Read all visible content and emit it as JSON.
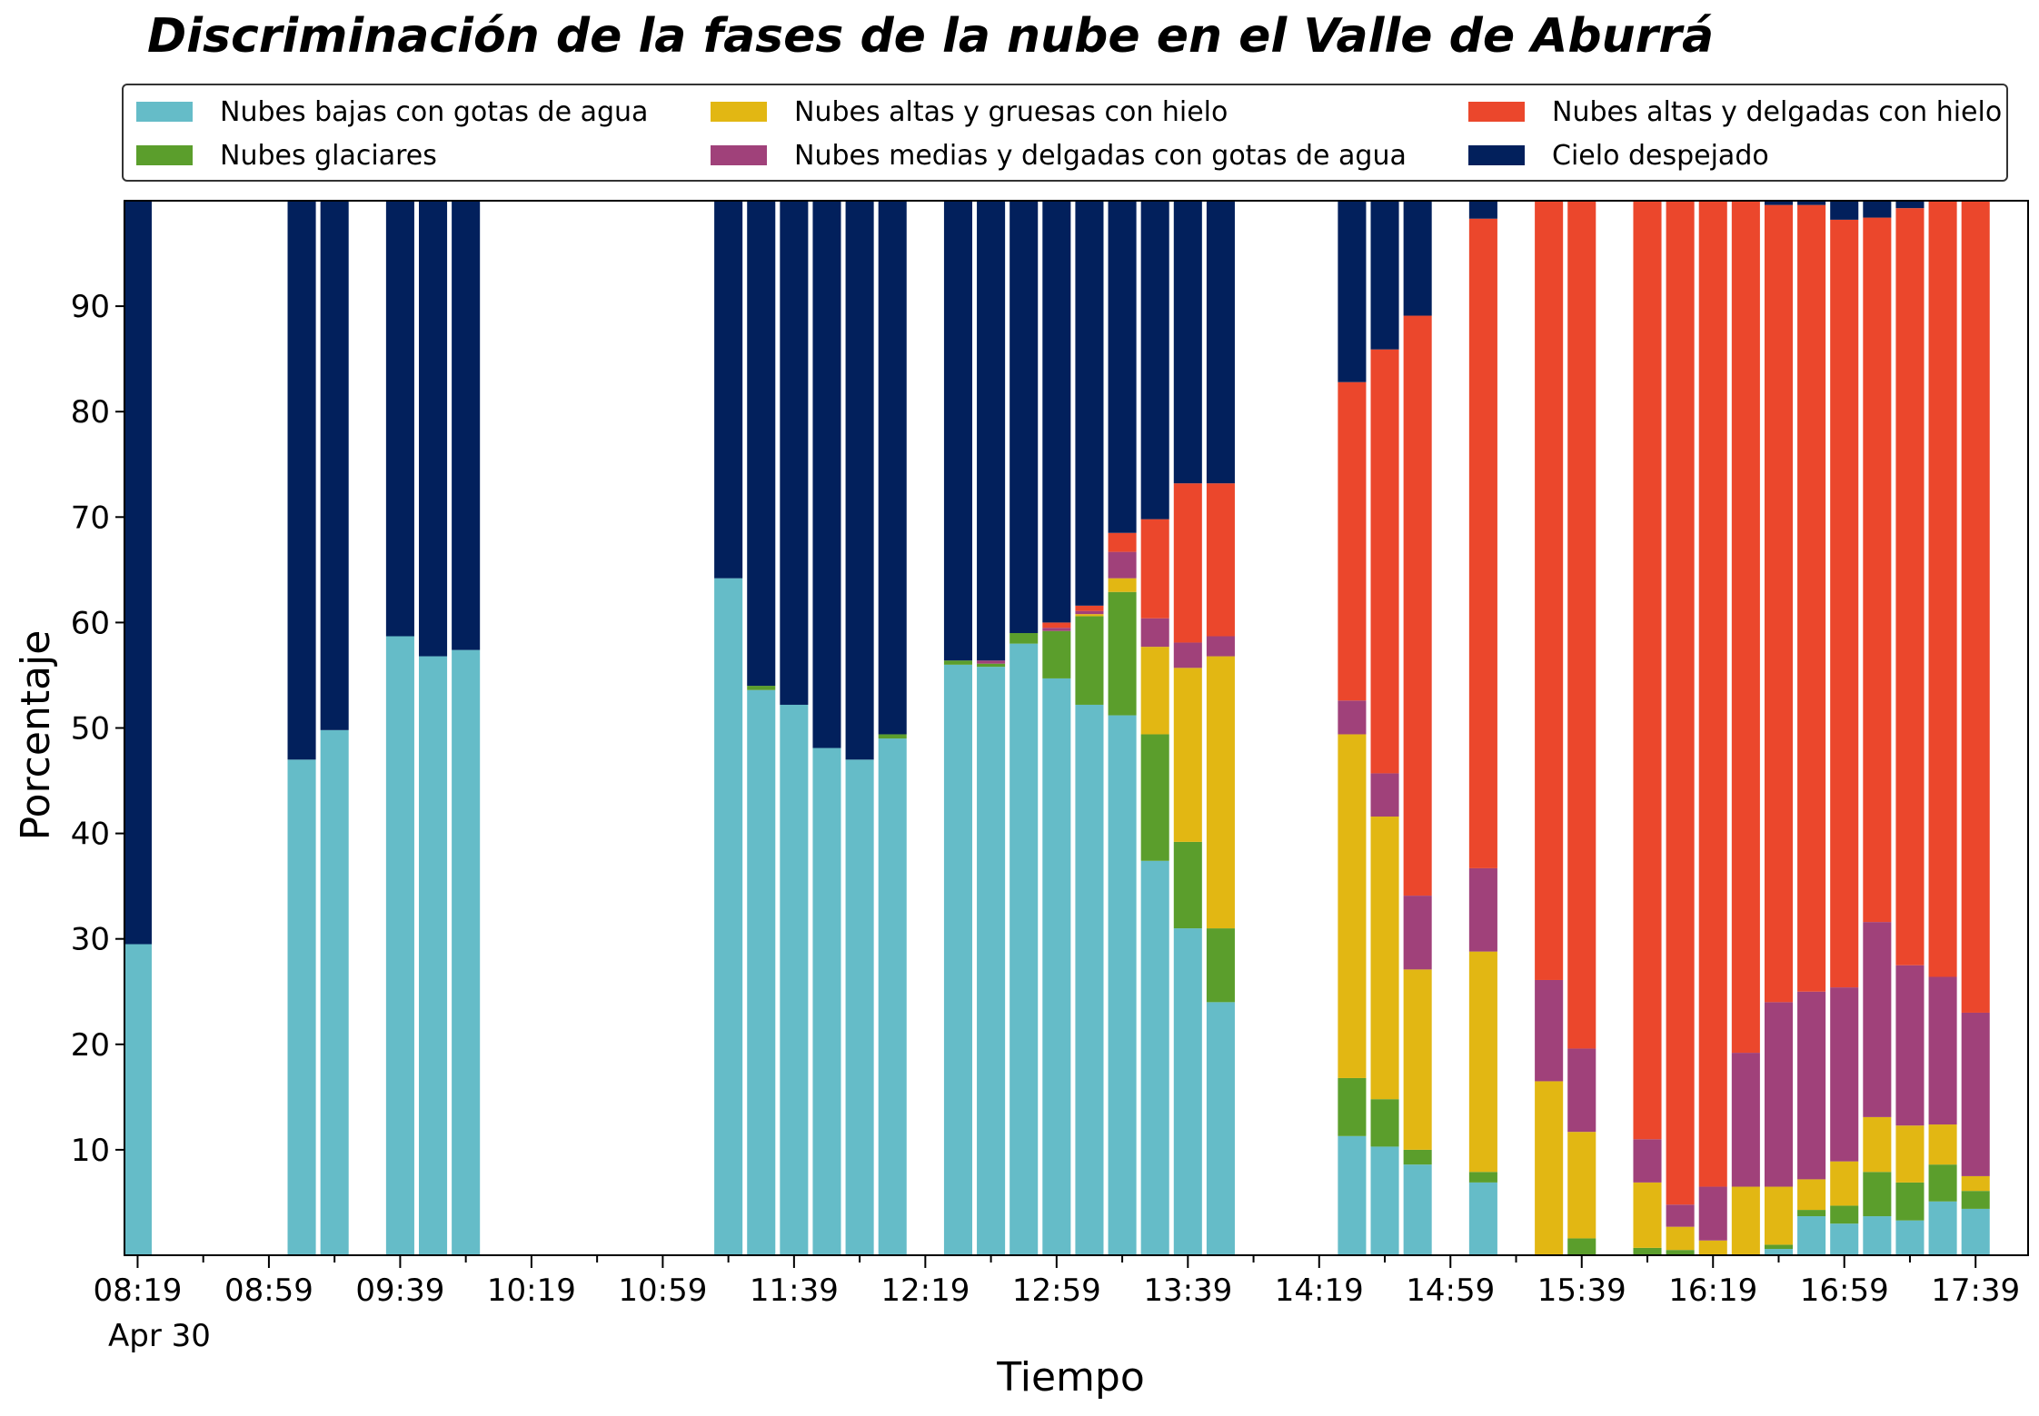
{
  "chart_data": {
    "type": "bar",
    "stacked": true,
    "title": "Discriminación de la fases de la nube en el Valle de Aburrá",
    "xlabel": "Tiempo",
    "ylabel": "Porcentaje",
    "ylim": [
      0,
      100
    ],
    "yticks": [
      10,
      20,
      30,
      40,
      50,
      60,
      70,
      80,
      90
    ],
    "x_start": "08:15",
    "x_end": "17:55",
    "x_tick_labels": [
      "08:19",
      "08:59",
      "09:39",
      "10:19",
      "10:59",
      "11:39",
      "12:19",
      "12:59",
      "13:39",
      "14:19",
      "14:59",
      "15:39",
      "16:19",
      "16:59",
      "17:39"
    ],
    "x_date_label": "Apr 30",
    "legend_location": "top",
    "grid": false,
    "colors": {
      "bajas": "#65bcc8",
      "glaciares": "#5b9e2c",
      "gruesas_hielo": "#e2b713",
      "medias_agua": "#a0417a",
      "delgadas_hielo": "#eb472c",
      "despejado": "#02205c"
    },
    "series": [
      {
        "name": "Nubes bajas con gotas de agua",
        "key": "bajas"
      },
      {
        "name": "Nubes altas y gruesas con hielo",
        "key": "gruesas_hielo"
      },
      {
        "name": "Nubes altas y delgadas con hielo",
        "key": "delgadas_hielo"
      },
      {
        "name": "Nubes glaciares",
        "key": "glaciares"
      },
      {
        "name": "Nubes medias y delgadas con gotas de agua",
        "key": "medias_agua"
      },
      {
        "name": "Cielo despejado",
        "key": "despejado"
      }
    ],
    "stack_order": [
      "bajas",
      "glaciares",
      "gruesas_hielo",
      "medias_agua",
      "delgadas_hielo",
      "despejado"
    ],
    "bars": [
      {
        "time": "08:19",
        "bajas": 29.5,
        "glaciares": 0,
        "gruesas_hielo": 0,
        "medias_agua": 0,
        "delgadas_hielo": 0,
        "despejado": 70.5
      },
      {
        "time": "09:09",
        "bajas": 47.0,
        "glaciares": 0,
        "gruesas_hielo": 0,
        "medias_agua": 0,
        "delgadas_hielo": 0,
        "despejado": 53.0
      },
      {
        "time": "09:19",
        "bajas": 49.8,
        "glaciares": 0,
        "gruesas_hielo": 0,
        "medias_agua": 0,
        "delgadas_hielo": 0,
        "despejado": 50.2
      },
      {
        "time": "09:39",
        "bajas": 58.7,
        "glaciares": 0,
        "gruesas_hielo": 0,
        "medias_agua": 0,
        "delgadas_hielo": 0,
        "despejado": 41.3
      },
      {
        "time": "09:49",
        "bajas": 56.8,
        "glaciares": 0,
        "gruesas_hielo": 0,
        "medias_agua": 0,
        "delgadas_hielo": 0,
        "despejado": 43.2
      },
      {
        "time": "09:59",
        "bajas": 57.4,
        "glaciares": 0,
        "gruesas_hielo": 0,
        "medias_agua": 0,
        "delgadas_hielo": 0,
        "despejado": 42.6
      },
      {
        "time": "11:19",
        "bajas": 64.2,
        "glaciares": 0,
        "gruesas_hielo": 0,
        "medias_agua": 0,
        "delgadas_hielo": 0,
        "despejado": 35.8
      },
      {
        "time": "11:29",
        "bajas": 53.6,
        "glaciares": 0.4,
        "gruesas_hielo": 0,
        "medias_agua": 0,
        "delgadas_hielo": 0,
        "despejado": 46.0
      },
      {
        "time": "11:39",
        "bajas": 52.2,
        "glaciares": 0,
        "gruesas_hielo": 0,
        "medias_agua": 0,
        "delgadas_hielo": 0,
        "despejado": 47.8
      },
      {
        "time": "11:49",
        "bajas": 48.1,
        "glaciares": 0,
        "gruesas_hielo": 0,
        "medias_agua": 0,
        "delgadas_hielo": 0,
        "despejado": 51.9
      },
      {
        "time": "11:59",
        "bajas": 47.0,
        "glaciares": 0,
        "gruesas_hielo": 0,
        "medias_agua": 0,
        "delgadas_hielo": 0,
        "despejado": 53.0
      },
      {
        "time": "12:09",
        "bajas": 49.0,
        "glaciares": 0.4,
        "gruesas_hielo": 0,
        "medias_agua": 0,
        "delgadas_hielo": 0,
        "despejado": 50.6
      },
      {
        "time": "12:29",
        "bajas": 56.0,
        "glaciares": 0.4,
        "gruesas_hielo": 0,
        "medias_agua": 0,
        "delgadas_hielo": 0,
        "despejado": 43.6
      },
      {
        "time": "12:39",
        "bajas": 55.8,
        "glaciares": 0.3,
        "gruesas_hielo": 0,
        "medias_agua": 0.3,
        "delgadas_hielo": 0,
        "despejado": 43.6
      },
      {
        "time": "12:49",
        "bajas": 58.0,
        "glaciares": 1.0,
        "gruesas_hielo": 0,
        "medias_agua": 0,
        "delgadas_hielo": 0,
        "despejado": 41.0
      },
      {
        "time": "12:59",
        "bajas": 54.7,
        "glaciares": 4.5,
        "gruesas_hielo": 0,
        "medias_agua": 0.3,
        "delgadas_hielo": 0.5,
        "despejado": 40.0
      },
      {
        "time": "13:09",
        "bajas": 52.2,
        "glaciares": 8.4,
        "gruesas_hielo": 0.2,
        "medias_agua": 0.3,
        "delgadas_hielo": 0.5,
        "despejado": 38.4
      },
      {
        "time": "13:19",
        "bajas": 51.2,
        "glaciares": 11.7,
        "gruesas_hielo": 1.3,
        "medias_agua": 2.5,
        "delgadas_hielo": 1.8,
        "despejado": 31.5
      },
      {
        "time": "13:29",
        "bajas": 37.4,
        "glaciares": 12.0,
        "gruesas_hielo": 8.3,
        "medias_agua": 2.7,
        "delgadas_hielo": 9.4,
        "despejado": 30.2
      },
      {
        "time": "13:39",
        "bajas": 31.0,
        "glaciares": 8.2,
        "gruesas_hielo": 16.5,
        "medias_agua": 2.4,
        "delgadas_hielo": 15.1,
        "despejado": 26.8
      },
      {
        "time": "13:49",
        "bajas": 24.0,
        "glaciares": 7.0,
        "gruesas_hielo": 25.8,
        "medias_agua": 1.9,
        "delgadas_hielo": 14.5,
        "despejado": 26.8
      },
      {
        "time": "14:29",
        "bajas": 11.3,
        "glaciares": 5.5,
        "gruesas_hielo": 32.6,
        "medias_agua": 3.2,
        "delgadas_hielo": 30.2,
        "despejado": 17.2
      },
      {
        "time": "14:39",
        "bajas": 10.3,
        "glaciares": 4.5,
        "gruesas_hielo": 26.8,
        "medias_agua": 4.1,
        "delgadas_hielo": 40.2,
        "despejado": 14.1
      },
      {
        "time": "14:49",
        "bajas": 8.6,
        "glaciares": 1.4,
        "gruesas_hielo": 17.1,
        "medias_agua": 7.0,
        "delgadas_hielo": 55.0,
        "despejado": 10.9
      },
      {
        "time": "15:09",
        "bajas": 6.9,
        "glaciares": 1.0,
        "gruesas_hielo": 20.9,
        "medias_agua": 7.9,
        "delgadas_hielo": 61.6,
        "despejado": 1.7
      },
      {
        "time": "15:29",
        "bajas": 0,
        "glaciares": 0,
        "gruesas_hielo": 16.5,
        "medias_agua": 9.6,
        "delgadas_hielo": 73.9,
        "despejado": 0
      },
      {
        "time": "15:39",
        "bajas": 0,
        "glaciares": 1.6,
        "gruesas_hielo": 10.1,
        "medias_agua": 7.9,
        "delgadas_hielo": 80.4,
        "despejado": 0
      },
      {
        "time": "15:59",
        "bajas": 0,
        "glaciares": 0.7,
        "gruesas_hielo": 6.2,
        "medias_agua": 4.1,
        "delgadas_hielo": 89.0,
        "despejado": 0
      },
      {
        "time": "16:09",
        "bajas": 0,
        "glaciares": 0.5,
        "gruesas_hielo": 2.2,
        "medias_agua": 2.1,
        "delgadas_hielo": 95.2,
        "despejado": 0
      },
      {
        "time": "16:19",
        "bajas": 0,
        "glaciares": 0,
        "gruesas_hielo": 1.4,
        "medias_agua": 5.1,
        "delgadas_hielo": 93.5,
        "despejado": 0
      },
      {
        "time": "16:29",
        "bajas": 0,
        "glaciares": 0,
        "gruesas_hielo": 6.5,
        "medias_agua": 12.7,
        "delgadas_hielo": 80.8,
        "despejado": 0
      },
      {
        "time": "16:39",
        "bajas": 0.6,
        "glaciares": 0.4,
        "gruesas_hielo": 5.5,
        "medias_agua": 17.5,
        "delgadas_hielo": 75.6,
        "despejado": 0.4
      },
      {
        "time": "16:49",
        "bajas": 3.7,
        "glaciares": 0.6,
        "gruesas_hielo": 2.9,
        "medias_agua": 17.8,
        "delgadas_hielo": 74.6,
        "despejado": 0.4
      },
      {
        "time": "16:59",
        "bajas": 3.0,
        "glaciares": 1.7,
        "gruesas_hielo": 4.2,
        "medias_agua": 16.5,
        "delgadas_hielo": 72.8,
        "despejado": 1.8
      },
      {
        "time": "17:09",
        "bajas": 3.7,
        "glaciares": 4.2,
        "gruesas_hielo": 5.2,
        "medias_agua": 18.5,
        "delgadas_hielo": 66.8,
        "despejado": 1.6
      },
      {
        "time": "17:19",
        "bajas": 3.3,
        "glaciares": 3.6,
        "gruesas_hielo": 5.4,
        "medias_agua": 15.2,
        "delgadas_hielo": 71.8,
        "despejado": 0.7
      },
      {
        "time": "17:29",
        "bajas": 5.1,
        "glaciares": 3.5,
        "gruesas_hielo": 3.8,
        "medias_agua": 14.0,
        "delgadas_hielo": 73.6,
        "despejado": 0
      },
      {
        "time": "17:39",
        "bajas": 4.4,
        "glaciares": 1.7,
        "gruesas_hielo": 1.4,
        "medias_agua": 15.5,
        "delgadas_hielo": 77.0,
        "despejado": 0
      }
    ]
  }
}
